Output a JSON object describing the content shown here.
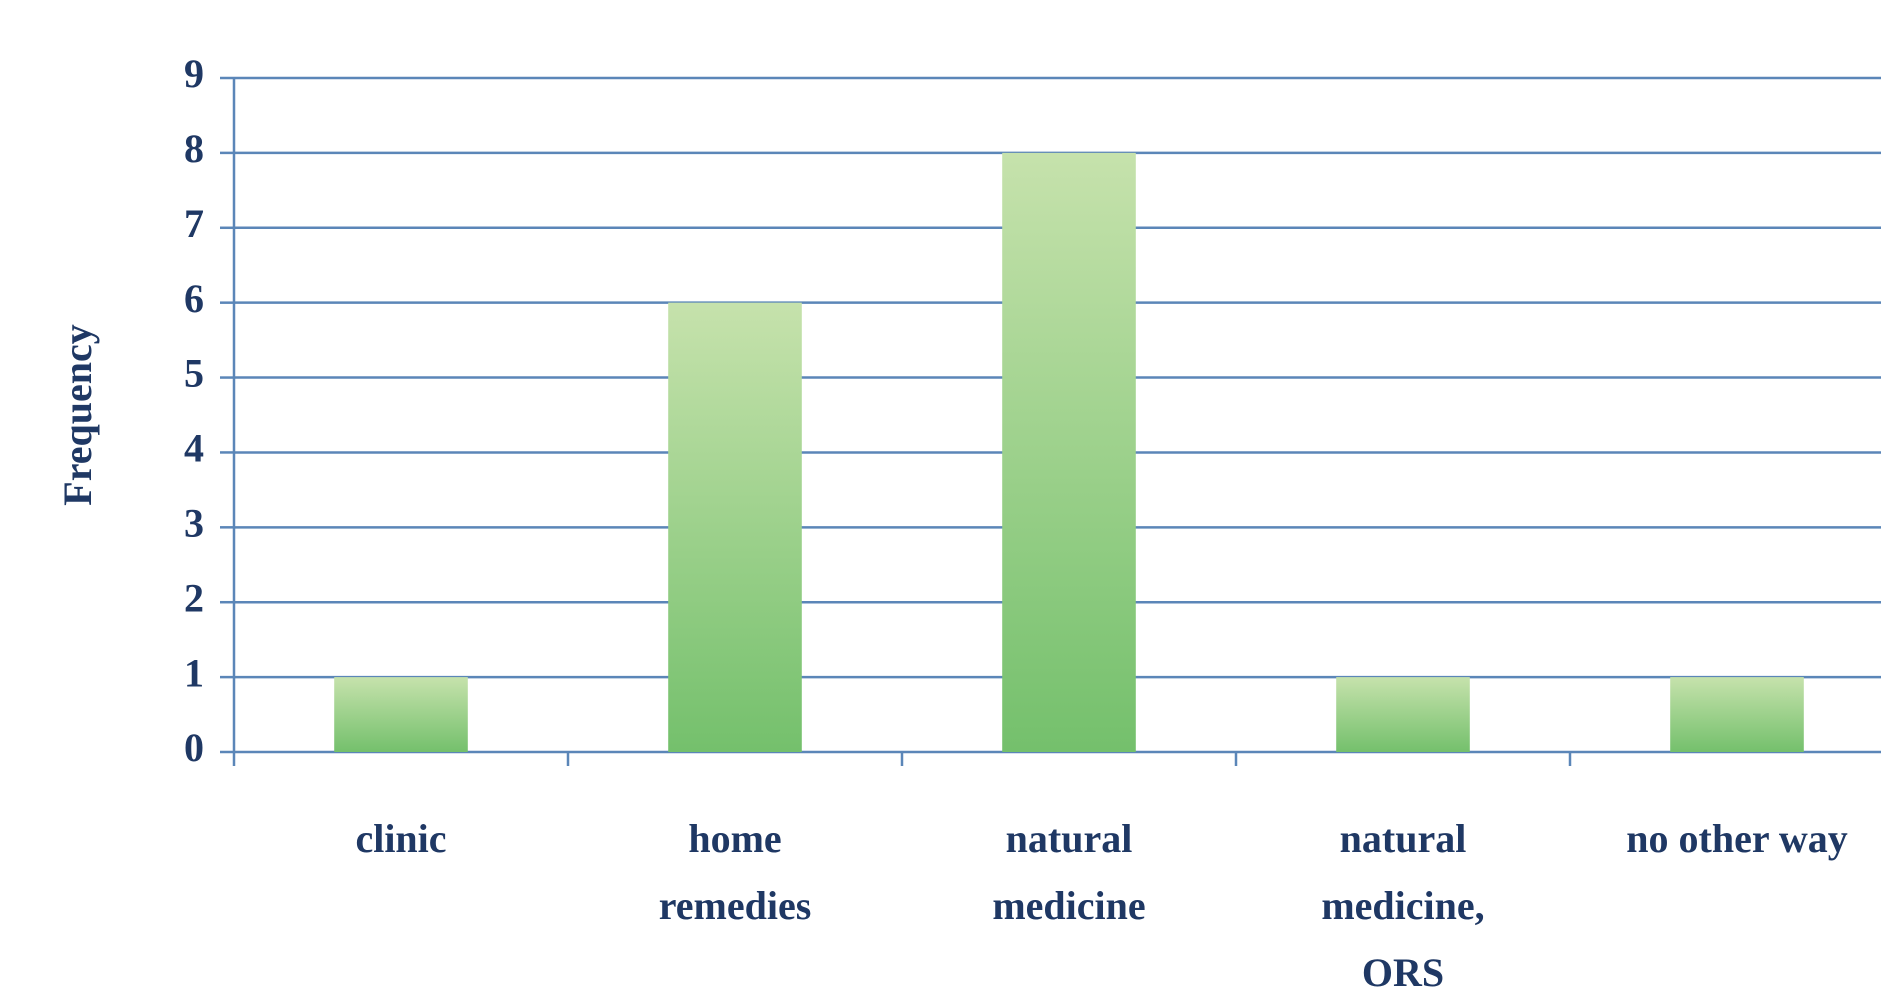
{
  "chart_data": {
    "type": "bar",
    "y_label": "Frequency",
    "categories": [
      "clinic",
      "home remedies",
      "natural medicine",
      "natural medicine, ORS",
      "no other way"
    ],
    "values": [
      1,
      6,
      8,
      1,
      1
    ],
    "color": "#74c06c",
    "ylim": [
      0,
      9
    ],
    "yticks": [
      0,
      1,
      2,
      3,
      4,
      5,
      6,
      7,
      8,
      9
    ],
    "grid": true
  }
}
